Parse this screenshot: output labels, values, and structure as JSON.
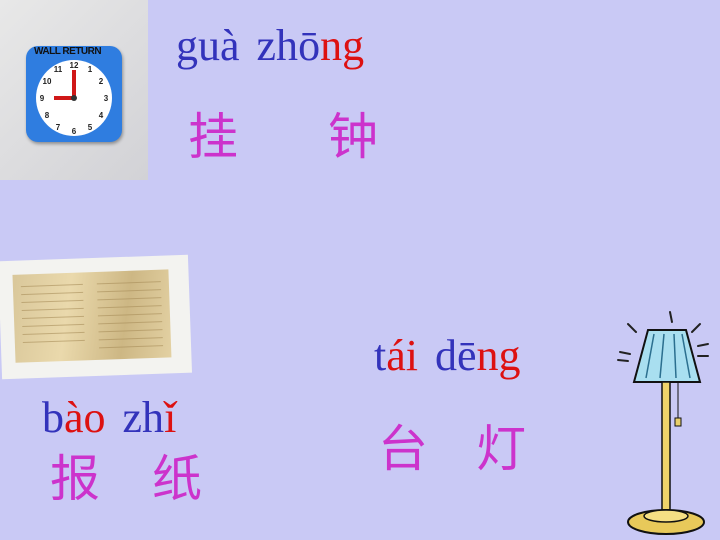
{
  "items": {
    "clock": {
      "pinyin1": {
        "initial": "g",
        "rest": "uà"
      },
      "pinyin2": {
        "a": "zh",
        "b": "ō",
        "c": "ng"
      },
      "hanzi1": "挂",
      "hanzi2": "钟",
      "image_text": "WALL RETURN"
    },
    "newspaper": {
      "pinyin1": {
        "a": "b",
        "b": "ào"
      },
      "pinyin2": {
        "a": "zh",
        "b": "ǐ"
      },
      "hanzi1": "报",
      "hanzi2": "纸"
    },
    "lamp": {
      "pinyin1": {
        "a": "t",
        "b": "ái"
      },
      "pinyin2": {
        "a": "d",
        "b": "ē",
        "c": "ng"
      },
      "hanzi1": "台",
      "hanzi2": "灯"
    }
  },
  "colors": {
    "background": "#c9c9f5",
    "pinyin_blue": "#3333bb",
    "pinyin_red": "#dd1111",
    "hanzi": "#cc33cc"
  },
  "icons": [
    "wall-clock-image",
    "newspaper-image",
    "floor-lamp-image"
  ]
}
